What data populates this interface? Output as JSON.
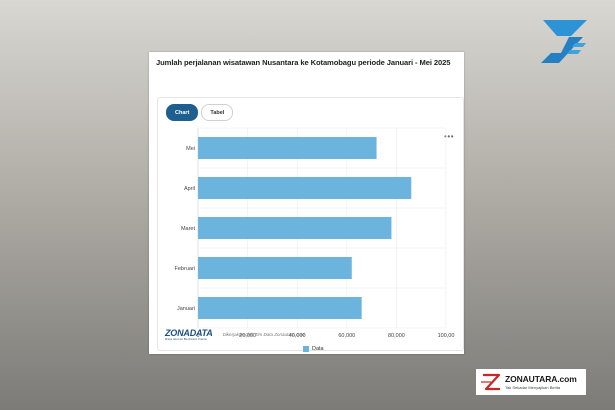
{
  "chart_title": "Jumlah perjalanan wisatawan Nusantara ke Kotamobagu periode Januari - Mei 2025",
  "tabs": [
    {
      "label": "Chart",
      "active": true
    },
    {
      "label": "Tabel",
      "active": false
    }
  ],
  "more_label": "•••",
  "footer": {
    "logo_name": "ZONADATA",
    "logo_sub": "Data Akurat Berbasis Fakta",
    "credit": "Dikerjakan oleh Tim Data Zonautara.com"
  },
  "badge": {
    "name": "ZONAUTARA.com",
    "tagline": "Tak Sekadar Menyajikan Berita"
  },
  "colors": {
    "bar": "#6ab4de",
    "tab_active": "#1f5f8f",
    "brand": "#1b4f7e",
    "badge_red": "#c62828"
  },
  "chart_data": {
    "type": "bar",
    "orientation": "horizontal",
    "categories": [
      "Mei",
      "April",
      "Maret",
      "Februari",
      "Januari"
    ],
    "series": [
      {
        "name": "Data",
        "values": [
          72000,
          86000,
          78000,
          62000,
          66000
        ]
      }
    ],
    "xlim": [
      0,
      100000
    ],
    "xticks": [
      "0",
      "20,000",
      "40,000",
      "60,000",
      "80,000",
      "100,00"
    ],
    "grid": true,
    "legend": "bottom"
  }
}
